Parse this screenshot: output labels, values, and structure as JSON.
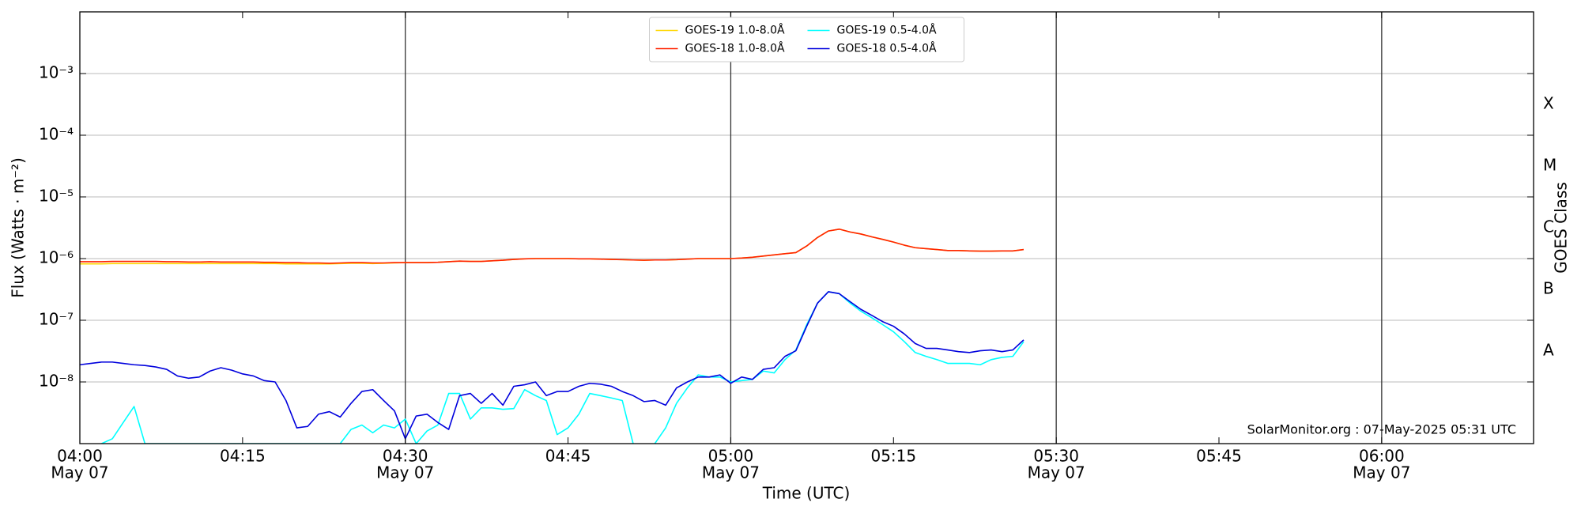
{
  "chart_data": {
    "type": "line",
    "xlabel": "Time (UTC)",
    "ylabel": "Flux (Watts · m⁻²)",
    "y2label": "GOES Class",
    "annotation": "SolarMonitor.org : 07-May-2025 05:31 UTC",
    "log_y": true,
    "grid": true,
    "legend": "upper center",
    "xlim": [
      "04:00",
      "06:14"
    ],
    "xticks": [
      "04:00",
      "04:15",
      "04:30",
      "04:45",
      "05:00",
      "05:15",
      "05:30",
      "05:45",
      "06:00"
    ],
    "xtick_sublabels": [
      "May 07",
      null,
      "May 07",
      null,
      "May 07",
      null,
      "May 07",
      null,
      "May 07"
    ],
    "ylim": [
      1e-09,
      0.01
    ],
    "yticks": [
      {
        "value": 1e-08,
        "label": "10⁻⁸"
      },
      {
        "value": 1e-07,
        "label": "10⁻⁷"
      },
      {
        "value": 1e-06,
        "label": "10⁻⁶"
      },
      {
        "value": 1e-05,
        "label": "10⁻⁵"
      },
      {
        "value": 0.0001,
        "label": "10⁻⁴"
      },
      {
        "value": 0.001,
        "label": "10⁻³"
      }
    ],
    "goes_classes": [
      "A",
      "B",
      "C",
      "M",
      "X"
    ],
    "goes_class_levels": [
      1e-08,
      1e-07,
      1e-06,
      1e-05,
      0.0001
    ],
    "x": [
      "04:00",
      "04:01",
      "04:02",
      "04:03",
      "04:04",
      "04:05",
      "04:06",
      "04:07",
      "04:08",
      "04:09",
      "04:10",
      "04:11",
      "04:12",
      "04:13",
      "04:14",
      "04:15",
      "04:16",
      "04:17",
      "04:18",
      "04:19",
      "04:20",
      "04:21",
      "04:22",
      "04:23",
      "04:24",
      "04:25",
      "04:26",
      "04:27",
      "04:28",
      "04:29",
      "04:30",
      "04:31",
      "04:32",
      "04:33",
      "04:34",
      "04:35",
      "04:36",
      "04:37",
      "04:38",
      "04:39",
      "04:40",
      "04:41",
      "04:42",
      "04:43",
      "04:44",
      "04:45",
      "04:46",
      "04:47",
      "04:48",
      "04:49",
      "04:50",
      "04:51",
      "04:52",
      "04:53",
      "04:54",
      "04:55",
      "04:56",
      "04:57",
      "04:58",
      "04:59",
      "05:00",
      "05:01",
      "05:02",
      "05:03",
      "05:04",
      "05:05",
      "05:06",
      "05:07",
      "05:08",
      "05:09",
      "05:10",
      "05:11",
      "05:12",
      "05:13",
      "05:14",
      "05:15",
      "05:16",
      "05:17",
      "05:18",
      "05:19",
      "05:20",
      "05:21",
      "05:22",
      "05:23",
      "05:24",
      "05:25",
      "05:26",
      "05:27"
    ],
    "series": [
      {
        "name": "GOES-19 1.0-8.0Å",
        "color": "#ffd700",
        "values": [
          8.2e-07,
          8.2e-07,
          8.2e-07,
          8.3e-07,
          8.3e-07,
          8.3e-07,
          8.3e-07,
          8.3e-07,
          8.3e-07,
          8.3e-07,
          8.3e-07,
          8.3e-07,
          8.3e-07,
          8.3e-07,
          8.3e-07,
          8.3e-07,
          8.3e-07,
          8.3e-07,
          8.3e-07,
          8.2e-07,
          8.2e-07,
          8.2e-07,
          8.2e-07,
          8.2e-07,
          8.3e-07,
          8.4e-07,
          8.4e-07,
          8.3e-07,
          8.4e-07,
          8.5e-07,
          8.6e-07,
          8.6e-07,
          8.6e-07,
          8.7e-07,
          8.9e-07,
          9.1e-07,
          9e-07,
          9e-07,
          9.2e-07,
          9.4e-07,
          9.7e-07,
          9.9e-07,
          1e-06,
          1e-06,
          1e-06,
          1e-06,
          9.9e-07,
          9.9e-07,
          9.8e-07,
          9.7e-07,
          9.6e-07,
          9.5e-07,
          9.4e-07,
          9.5e-07,
          9.5e-07,
          9.6e-07,
          9.8e-07,
          1e-06,
          1e-06,
          1e-06,
          1e-06,
          1.02e-06,
          1.05e-06,
          1.1e-06,
          1.15e-06,
          1.2e-06,
          1.25e-06,
          1.6e-06,
          2.2e-06,
          2.8e-06,
          3e-06,
          2.7e-06,
          2.5e-06,
          2.25e-06,
          2.05e-06,
          1.85e-06,
          1.65e-06,
          1.5e-06,
          1.45e-06,
          1.4e-06,
          1.35e-06,
          1.35e-06,
          1.33e-06,
          1.32e-06,
          1.32e-06,
          1.33e-06,
          1.33e-06,
          1.4e-06
        ]
      },
      {
        "name": "GOES-18 1.0-8.0Å",
        "color": "#ff2200",
        "values": [
          8.9e-07,
          8.9e-07,
          8.9e-07,
          9e-07,
          9e-07,
          9e-07,
          9e-07,
          9e-07,
          8.9e-07,
          8.9e-07,
          8.8e-07,
          8.8e-07,
          8.9e-07,
          8.8e-07,
          8.8e-07,
          8.8e-07,
          8.8e-07,
          8.7e-07,
          8.7e-07,
          8.6e-07,
          8.6e-07,
          8.5e-07,
          8.5e-07,
          8.4e-07,
          8.5e-07,
          8.6e-07,
          8.6e-07,
          8.5e-07,
          8.5e-07,
          8.6e-07,
          8.6e-07,
          8.6e-07,
          8.6e-07,
          8.7e-07,
          8.9e-07,
          9.1e-07,
          9e-07,
          9e-07,
          9.2e-07,
          9.4e-07,
          9.7e-07,
          9.9e-07,
          1e-06,
          1e-06,
          1e-06,
          1e-06,
          9.9e-07,
          9.9e-07,
          9.8e-07,
          9.7e-07,
          9.6e-07,
          9.5e-07,
          9.4e-07,
          9.5e-07,
          9.5e-07,
          9.6e-07,
          9.8e-07,
          1e-06,
          1e-06,
          1e-06,
          1e-06,
          1.02e-06,
          1.05e-06,
          1.1e-06,
          1.15e-06,
          1.2e-06,
          1.25e-06,
          1.6e-06,
          2.2e-06,
          2.8e-06,
          3e-06,
          2.7e-06,
          2.5e-06,
          2.25e-06,
          2.05e-06,
          1.85e-06,
          1.65e-06,
          1.5e-06,
          1.45e-06,
          1.4e-06,
          1.35e-06,
          1.35e-06,
          1.33e-06,
          1.32e-06,
          1.32e-06,
          1.33e-06,
          1.33e-06,
          1.4e-06
        ]
      },
      {
        "name": "GOES-19 0.5-4.0Å",
        "color": "#00ffff",
        "values": [
          null,
          null,
          1e-09,
          1.2e-09,
          2.2e-09,
          4e-09,
          1e-09,
          1e-09,
          1e-09,
          1e-09,
          1e-09,
          1e-09,
          1e-09,
          1e-09,
          1e-09,
          1e-09,
          1e-09,
          1e-09,
          1e-09,
          1e-09,
          1e-09,
          1e-09,
          1e-09,
          1e-09,
          1e-09,
          1.7e-09,
          2e-09,
          1.5e-09,
          2e-09,
          1.8e-09,
          2.5e-09,
          1e-09,
          1.6e-09,
          2e-09,
          6.5e-09,
          6.5e-09,
          2.5e-09,
          3.8e-09,
          3.8e-09,
          3.6e-09,
          3.7e-09,
          7.5e-09,
          6e-09,
          5e-09,
          1.4e-09,
          1.8e-09,
          3e-09,
          6.5e-09,
          6e-09,
          5.5e-09,
          5e-09,
          1e-09,
          9e-10,
          1e-09,
          1.8e-09,
          4.5e-09,
          8e-09,
          1.3e-08,
          1.2e-08,
          1.2e-08,
          1e-08,
          1.05e-08,
          1.1e-08,
          1.5e-08,
          1.4e-08,
          2.3e-08,
          3.3e-08,
          8.5e-08,
          1.9e-07,
          2.9e-07,
          2.7e-07,
          1.9e-07,
          1.4e-07,
          1.1e-07,
          8.5e-08,
          6.5e-08,
          4.5e-08,
          3e-08,
          2.6e-08,
          2.3e-08,
          2e-08,
          2e-08,
          2e-08,
          1.9e-08,
          2.3e-08,
          2.5e-08,
          2.6e-08,
          4.5e-08
        ]
      },
      {
        "name": "GOES-18 0.5-4.0Å",
        "color": "#0000dd",
        "values": [
          1.9e-08,
          2e-08,
          2.1e-08,
          2.1e-08,
          2e-08,
          1.9e-08,
          1.85e-08,
          1.75e-08,
          1.6e-08,
          1.25e-08,
          1.15e-08,
          1.2e-08,
          1.5e-08,
          1.7e-08,
          1.55e-08,
          1.35e-08,
          1.25e-08,
          1.05e-08,
          1e-08,
          5e-09,
          1.8e-09,
          1.9e-09,
          3e-09,
          3.3e-09,
          2.7e-09,
          4.5e-09,
          7e-09,
          7.5e-09,
          5e-09,
          3.4e-09,
          1.2e-09,
          2.8e-09,
          3e-09,
          2.2e-09,
          1.7e-09,
          6e-09,
          6.5e-09,
          4.5e-09,
          6.5e-09,
          4.2e-09,
          8.5e-09,
          9e-09,
          1e-08,
          6e-09,
          7e-09,
          7e-09,
          8.5e-09,
          9.5e-09,
          9.2e-09,
          8.5e-09,
          7e-09,
          6e-09,
          4.8e-09,
          5e-09,
          4.2e-09,
          8e-09,
          1e-08,
          1.2e-08,
          1.2e-08,
          1.3e-08,
          9.5e-09,
          1.2e-08,
          1.1e-08,
          1.6e-08,
          1.7e-08,
          2.6e-08,
          3.2e-08,
          8e-08,
          1.9e-07,
          2.9e-07,
          2.7e-07,
          2e-07,
          1.5e-07,
          1.2e-07,
          9.5e-08,
          8e-08,
          6e-08,
          4.2e-08,
          3.5e-08,
          3.5e-08,
          3.3e-08,
          3.1e-08,
          3e-08,
          3.2e-08,
          3.3e-08,
          3.1e-08,
          3.3e-08,
          4.8e-08
        ]
      }
    ]
  }
}
